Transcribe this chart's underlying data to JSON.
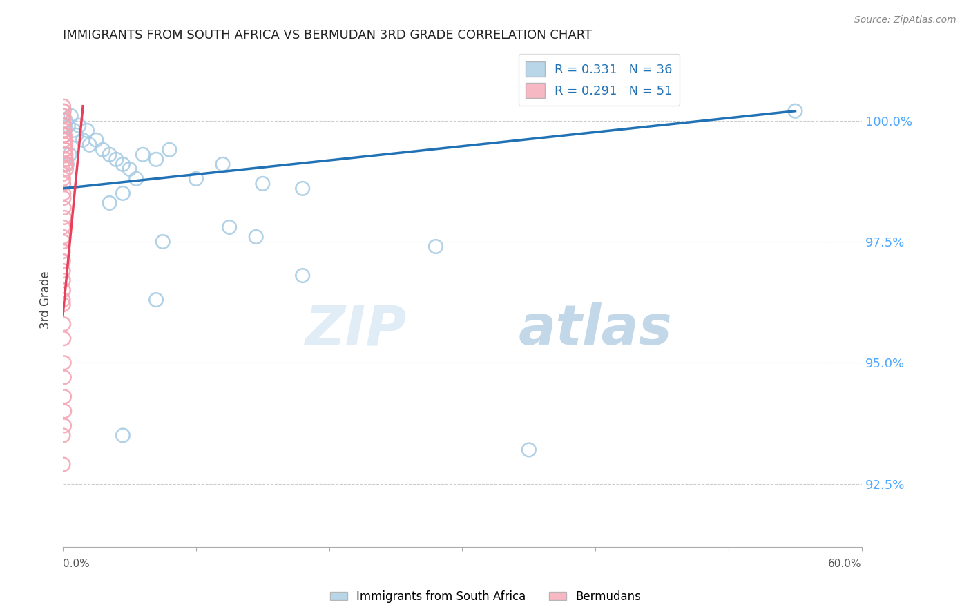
{
  "title": "IMMIGRANTS FROM SOUTH AFRICA VS BERMUDAN 3RD GRADE CORRELATION CHART",
  "source": "Source: ZipAtlas.com",
  "ylabel": "3rd Grade",
  "ytick_values": [
    92.5,
    95.0,
    97.5,
    100.0
  ],
  "xlim": [
    0.0,
    60.0
  ],
  "ylim": [
    91.2,
    101.4
  ],
  "legend_blue_label": "Immigrants from South Africa",
  "legend_pink_label": "Bermudans",
  "R_blue": 0.331,
  "N_blue": 36,
  "R_pink": 0.291,
  "N_pink": 51,
  "blue_color": "#a8cce4",
  "pink_color": "#f4a7b5",
  "blue_line_color": "#2171b5",
  "pink_line_color": "#e8405a",
  "blue_scatter": [
    [
      0.2,
      100.0
    ],
    [
      0.4,
      99.9
    ],
    [
      0.6,
      100.1
    ],
    [
      0.8,
      99.8
    ],
    [
      1.0,
      99.7
    ],
    [
      1.2,
      99.9
    ],
    [
      1.5,
      99.6
    ],
    [
      1.8,
      99.8
    ],
    [
      2.0,
      99.5
    ],
    [
      2.5,
      99.6
    ],
    [
      3.0,
      99.4
    ],
    [
      3.5,
      99.3
    ],
    [
      4.0,
      99.2
    ],
    [
      4.5,
      99.1
    ],
    [
      5.0,
      99.0
    ],
    [
      5.5,
      98.8
    ],
    [
      6.0,
      99.3
    ],
    [
      7.0,
      99.2
    ],
    [
      8.0,
      99.4
    ],
    [
      10.0,
      98.8
    ],
    [
      12.0,
      99.1
    ],
    [
      15.0,
      98.7
    ],
    [
      18.0,
      98.6
    ],
    [
      3.5,
      98.3
    ],
    [
      4.5,
      98.5
    ],
    [
      7.5,
      97.5
    ],
    [
      12.5,
      97.8
    ],
    [
      14.5,
      97.6
    ],
    [
      7.0,
      96.3
    ],
    [
      4.5,
      93.5
    ],
    [
      18.0,
      96.8
    ],
    [
      28.0,
      97.4
    ],
    [
      35.0,
      93.2
    ],
    [
      55.0,
      100.2
    ],
    [
      0.5,
      99.3
    ],
    [
      0.3,
      99.1
    ]
  ],
  "pink_scatter": [
    [
      0.02,
      100.2
    ],
    [
      0.03,
      100.1
    ],
    [
      0.04,
      100.0
    ],
    [
      0.05,
      100.3
    ],
    [
      0.06,
      100.1
    ],
    [
      0.07,
      99.9
    ],
    [
      0.08,
      100.2
    ],
    [
      0.09,
      99.8
    ],
    [
      0.1,
      99.9
    ],
    [
      0.11,
      99.7
    ],
    [
      0.12,
      99.8
    ],
    [
      0.13,
      99.6
    ],
    [
      0.14,
      99.7
    ],
    [
      0.15,
      99.5
    ],
    [
      0.16,
      99.6
    ],
    [
      0.17,
      99.4
    ],
    [
      0.18,
      99.5
    ],
    [
      0.19,
      99.3
    ],
    [
      0.2,
      99.4
    ],
    [
      0.21,
      99.2
    ],
    [
      0.22,
      99.3
    ],
    [
      0.23,
      99.1
    ],
    [
      0.24,
      99.2
    ],
    [
      0.25,
      99.0
    ],
    [
      0.02,
      99.1
    ],
    [
      0.03,
      98.9
    ],
    [
      0.04,
      98.8
    ],
    [
      0.05,
      98.7
    ],
    [
      0.06,
      98.5
    ],
    [
      0.07,
      98.4
    ],
    [
      0.08,
      98.2
    ],
    [
      0.09,
      98.0
    ],
    [
      0.02,
      97.8
    ],
    [
      0.03,
      97.6
    ],
    [
      0.04,
      97.5
    ],
    [
      0.02,
      97.3
    ],
    [
      0.03,
      97.1
    ],
    [
      0.02,
      96.9
    ],
    [
      0.03,
      96.7
    ],
    [
      0.04,
      96.5
    ],
    [
      0.02,
      96.3
    ],
    [
      0.03,
      96.2
    ],
    [
      0.05,
      95.8
    ],
    [
      0.06,
      95.5
    ],
    [
      0.08,
      95.0
    ],
    [
      0.09,
      94.7
    ],
    [
      0.1,
      94.3
    ],
    [
      0.11,
      94.0
    ],
    [
      0.1,
      93.7
    ],
    [
      0.02,
      93.5
    ],
    [
      0.02,
      92.9
    ]
  ],
  "blue_trendline": [
    [
      0,
      55
    ],
    [
      98.6,
      100.2
    ]
  ],
  "pink_trendline": [
    [
      0,
      1.5
    ],
    [
      96.0,
      100.3
    ]
  ],
  "watermark_zip": "ZIP",
  "watermark_atlas": "atlas",
  "background_color": "#ffffff",
  "grid_color": "#cccccc"
}
